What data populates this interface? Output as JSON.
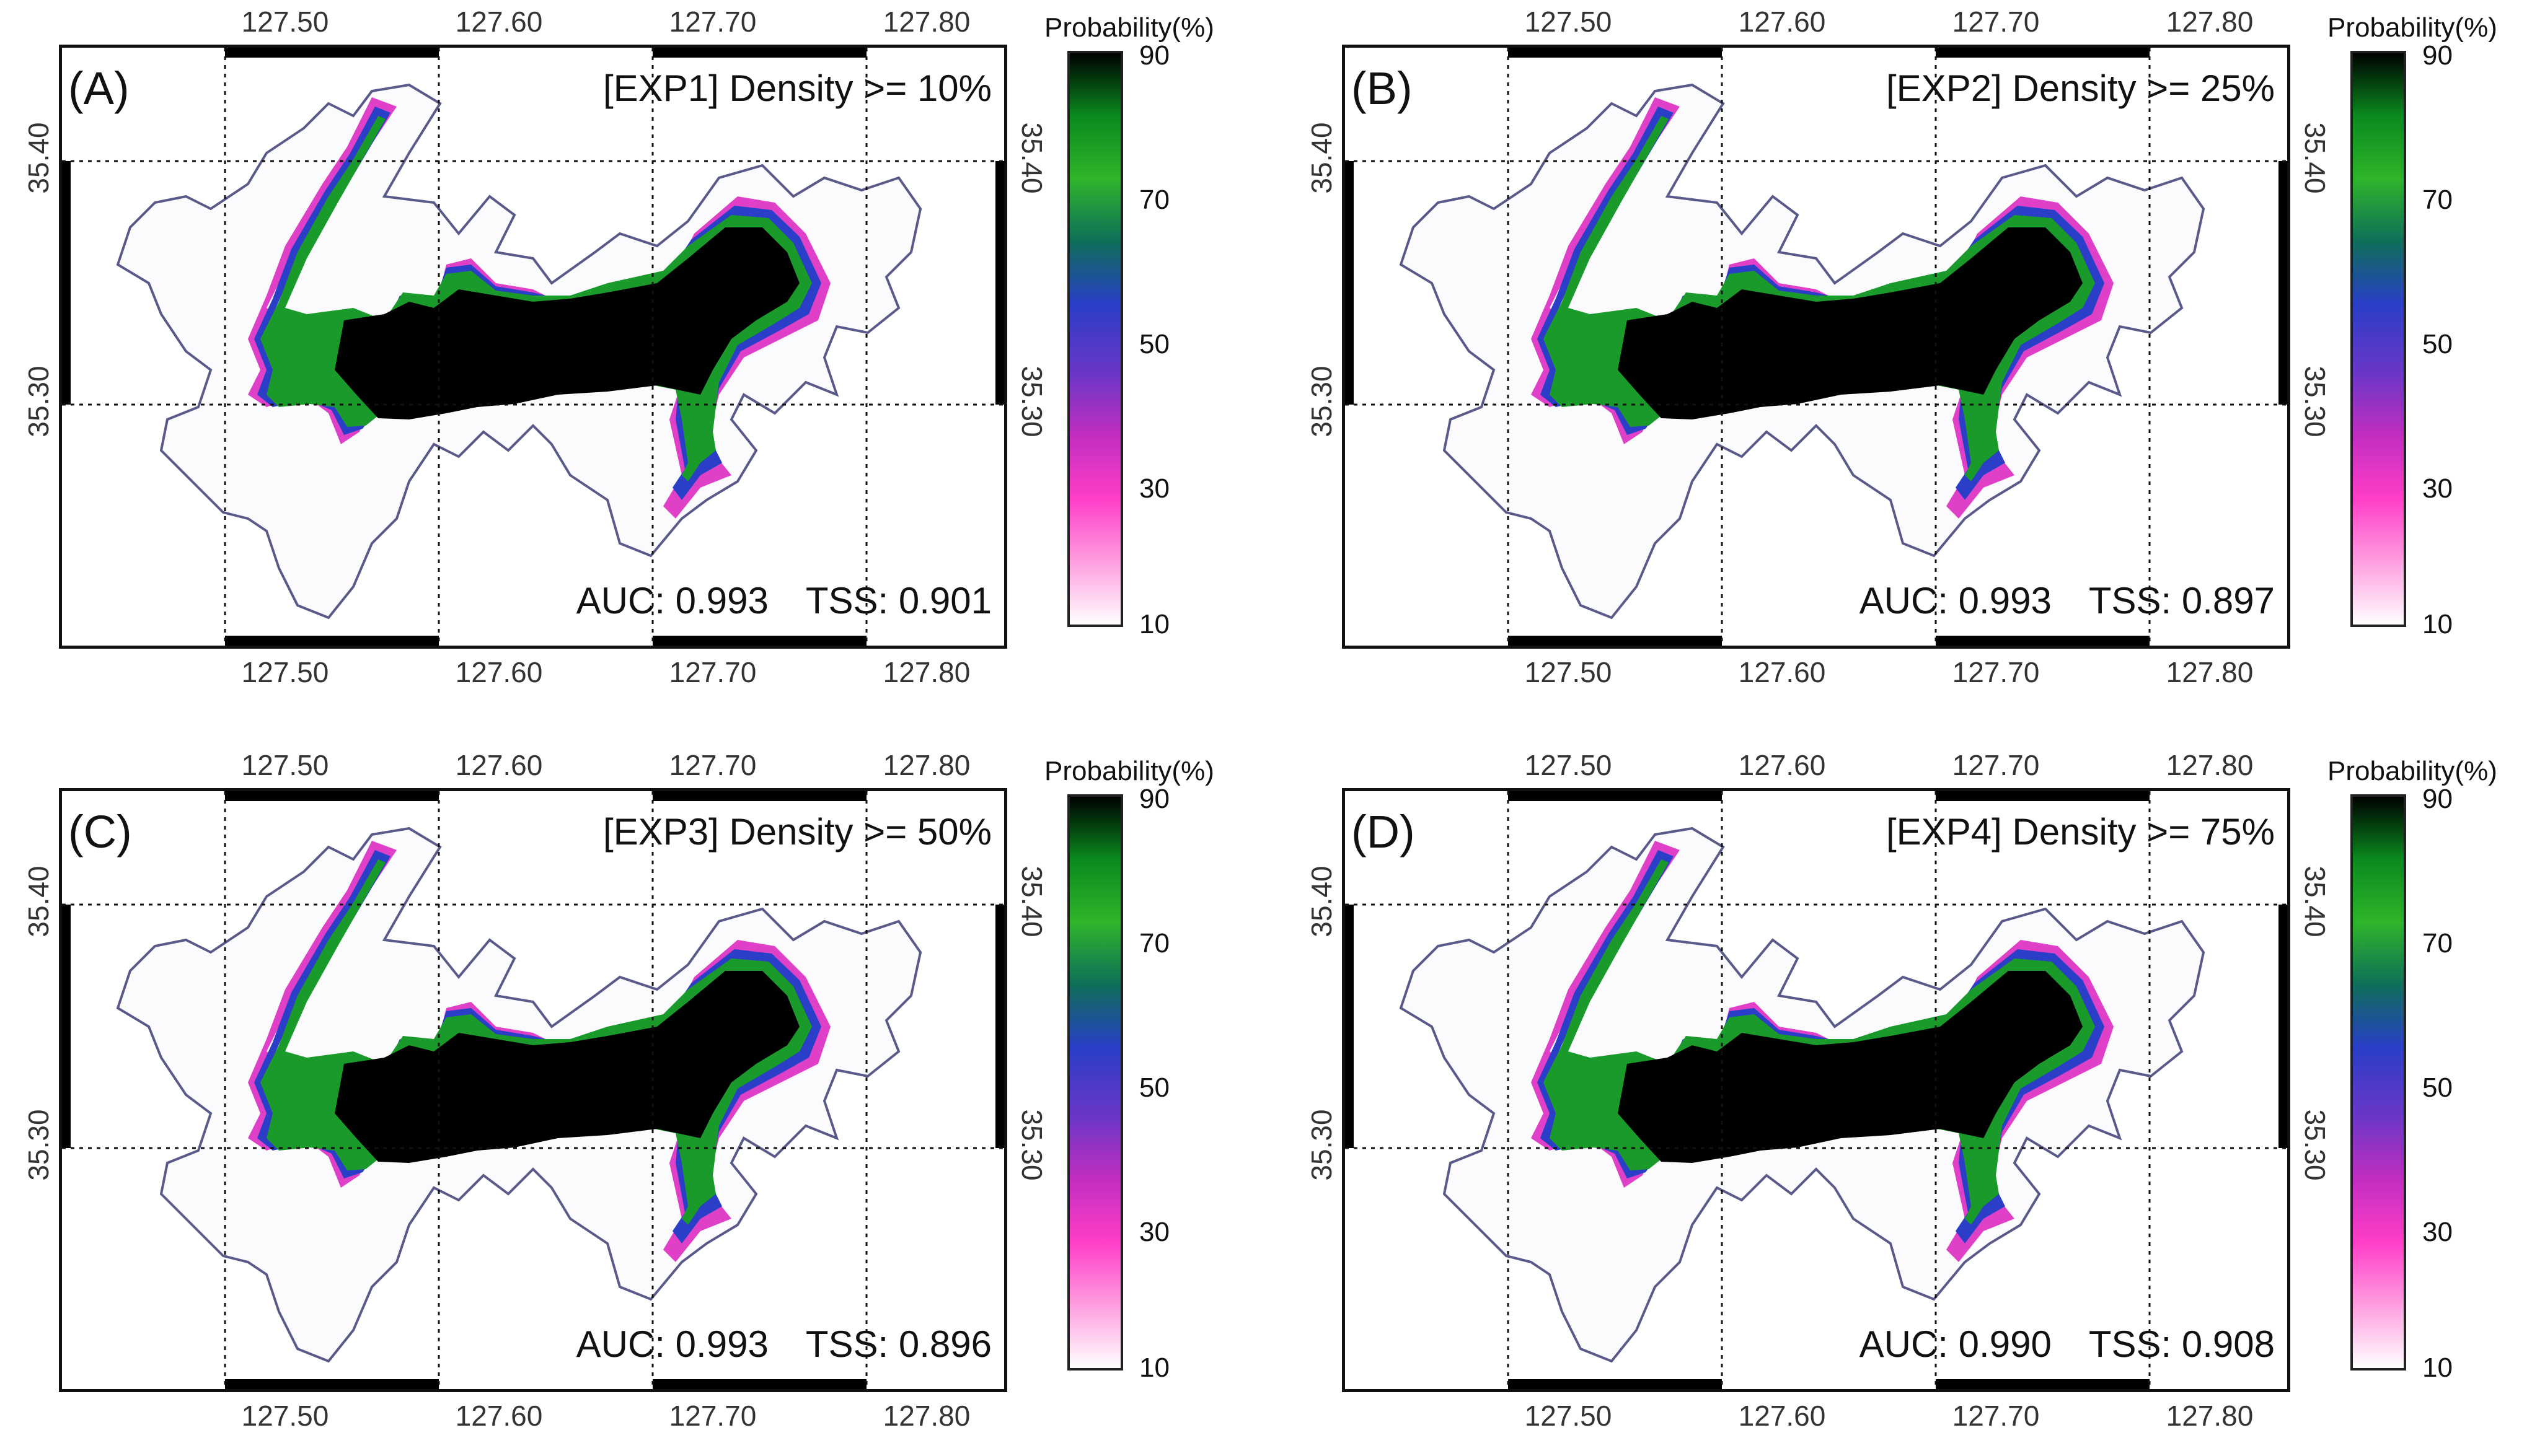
{
  "figure": {
    "colorbar": {
      "title": "Probability(%)",
      "tick_labels": [
        "90",
        "70",
        "50",
        "30",
        "10"
      ],
      "stops": [
        "#000000",
        "#0a8a1e",
        "#2fb52a",
        "#0e6e5a",
        "#2a3ec8",
        "#6a36c6",
        "#c22ec0",
        "#ff3ec8",
        "#ff9ee0",
        "#ffffff"
      ]
    },
    "axes": {
      "lon_labels": [
        "127.50",
        "127.60",
        "127.70",
        "127.80"
      ],
      "lat_labels": [
        "35.40",
        "35.30"
      ]
    },
    "panels": [
      {
        "label": "(A)",
        "experiment": "[EXP1] Density >= 10%",
        "auc": "AUC: 0.993",
        "tss": "TSS: 0.901"
      },
      {
        "label": "(B)",
        "experiment": "[EXP2] Density >= 25%",
        "auc": "AUC: 0.993",
        "tss": "TSS: 0.897"
      },
      {
        "label": "(C)",
        "experiment": "[EXP3] Density >= 50%",
        "auc": "AUC: 0.993",
        "tss": "TSS: 0.896"
      },
      {
        "label": "(D)",
        "experiment": "[EXP4] Density >= 75%",
        "auc": "AUC: 0.990",
        "tss": "TSS: 0.908"
      }
    ],
    "colors": {
      "core": "#000000",
      "high": "#1a9a2a",
      "mid": "#2a3ec8",
      "low": "#e040c8",
      "outline": "#5a5a8a",
      "grid": "#111111"
    }
  }
}
